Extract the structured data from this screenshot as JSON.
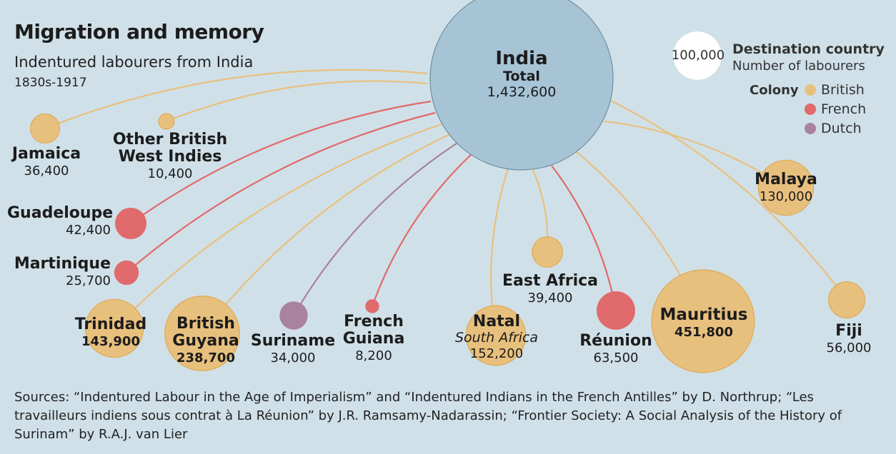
{
  "title": "Migration and memory",
  "subtitle": "Indentured labourers from India",
  "period": "1830s-1917",
  "sources": "Sources: “Indentured Labour in the Age of Imperialism” and “Indentured Indians in the French Antilles” by D. Northrup; “Les travailleurs indiens sous contrat à La Réunion” by J.R. Ramsamy-Nadarassin; “Frontier Society: A Social Analysis of the History of Surinam” by R.A.J. van Lier",
  "legend": {
    "ref_value": "100,000",
    "dest_label": "Destination country",
    "num_label": "Number of labourers",
    "colony_label": "Colony",
    "colonies": [
      {
        "key": "British",
        "label": "British",
        "color": "#e8c07e"
      },
      {
        "key": "French",
        "label": "French",
        "color": "#e06a6c"
      },
      {
        "key": "Dutch",
        "label": "Dutch",
        "color": "#a9829d"
      }
    ]
  },
  "chart_data": {
    "type": "bubble",
    "source": {
      "name": "India",
      "sub": "Total",
      "value": 1432600,
      "value_label": "1,432,600",
      "color": "#a7c4d6"
    },
    "destinations": [
      {
        "name": "Jamaica",
        "value": 36400,
        "value_label": "36,400",
        "colony": "British"
      },
      {
        "name": "Other British West Indies",
        "name_lines": [
          "Other British",
          "West Indies"
        ],
        "value": 10400,
        "value_label": "10,400",
        "colony": "British"
      },
      {
        "name": "Guadeloupe",
        "value": 42400,
        "value_label": "42,400",
        "colony": "French"
      },
      {
        "name": "Martinique",
        "value": 25700,
        "value_label": "25,700",
        "colony": "French"
      },
      {
        "name": "Trinidad",
        "value": 143900,
        "value_label": "143,900",
        "colony": "British"
      },
      {
        "name": "British Guyana",
        "name_lines": [
          "British",
          "Guyana"
        ],
        "value": 238700,
        "value_label": "238,700",
        "colony": "British"
      },
      {
        "name": "Suriname",
        "value": 34000,
        "value_label": "34,000",
        "colony": "Dutch"
      },
      {
        "name": "French Guiana",
        "name_lines": [
          "French",
          "Guiana"
        ],
        "value": 8200,
        "value_label": "8,200",
        "colony": "French"
      },
      {
        "name": "Natal",
        "sub": "South Africa",
        "value": 152200,
        "value_label": "152,200",
        "colony": "British"
      },
      {
        "name": "East Africa",
        "value": 39400,
        "value_label": "39,400",
        "colony": "British"
      },
      {
        "name": "Réunion",
        "value": 63500,
        "value_label": "63,500",
        "colony": "French"
      },
      {
        "name": "Mauritius",
        "value": 451800,
        "value_label": "451,800",
        "colony": "British"
      },
      {
        "name": "Malaya",
        "value": 130000,
        "value_label": "130,000",
        "colony": "British"
      },
      {
        "name": "Fiji",
        "value": 56000,
        "value_label": "56,000",
        "colony": "British"
      }
    ]
  }
}
